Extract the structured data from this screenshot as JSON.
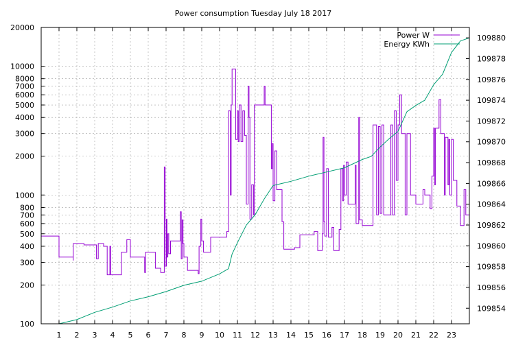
{
  "chart_data": {
    "type": "line",
    "title": "Power consumption Tuesday July 18 2017",
    "xlim": [
      0,
      24
    ],
    "x_ticks": [
      "1",
      "2",
      "3",
      "4",
      "5",
      "6",
      "7",
      "8",
      "9",
      "10",
      "11",
      "12",
      "13",
      "14",
      "15",
      "16",
      "17",
      "18",
      "19",
      "20",
      "21",
      "22",
      "23"
    ],
    "y_left": {
      "scale": "log",
      "range": [
        100,
        20000
      ],
      "ticks": [
        "100",
        "200",
        "300",
        "400",
        "500",
        "600",
        "700",
        "800",
        "1000",
        "2000",
        "3000",
        "4000",
        "5000",
        "6000",
        "7000",
        "8000",
        "10000",
        "20000"
      ]
    },
    "y_right": {
      "scale": "linear",
      "range": [
        109852.5,
        109881
      ],
      "ticks": [
        "109854",
        "109856",
        "109858",
        "109860",
        "109862",
        "109864",
        "109866",
        "109868",
        "109870",
        "109872",
        "109874",
        "109876",
        "109878",
        "109880"
      ]
    },
    "grid": true,
    "legend_position": "top-right",
    "series": [
      {
        "name": "Power W",
        "axis": "left",
        "color": "#9400d3",
        "points": [
          [
            0,
            480
          ],
          [
            1,
            480
          ],
          [
            1,
            330
          ],
          [
            1.8,
            330
          ],
          [
            1.8,
            310
          ],
          [
            1.8,
            420
          ],
          [
            2.4,
            420
          ],
          [
            2.4,
            410
          ],
          [
            3.1,
            410
          ],
          [
            3.1,
            320
          ],
          [
            3.2,
            320
          ],
          [
            3.2,
            420
          ],
          [
            3.5,
            420
          ],
          [
            3.5,
            400
          ],
          [
            3.7,
            400
          ],
          [
            3.7,
            240
          ],
          [
            3.85,
            240
          ],
          [
            3.85,
            400
          ],
          [
            3.9,
            400
          ],
          [
            3.9,
            240
          ],
          [
            4.5,
            240
          ],
          [
            4.5,
            360
          ],
          [
            4.8,
            360
          ],
          [
            4.8,
            450
          ],
          [
            5.0,
            450
          ],
          [
            5.0,
            330
          ],
          [
            5.8,
            330
          ],
          [
            5.8,
            250
          ],
          [
            5.85,
            250
          ],
          [
            5.85,
            360
          ],
          [
            6.4,
            360
          ],
          [
            6.4,
            270
          ],
          [
            6.7,
            270
          ],
          [
            6.7,
            250
          ],
          [
            6.9,
            250
          ],
          [
            6.9,
            1650
          ],
          [
            6.95,
            1650
          ],
          [
            6.95,
            280
          ],
          [
            7.02,
            280
          ],
          [
            7.02,
            650
          ],
          [
            7.05,
            650
          ],
          [
            7.05,
            330
          ],
          [
            7.1,
            330
          ],
          [
            7.1,
            500
          ],
          [
            7.15,
            500
          ],
          [
            7.15,
            350
          ],
          [
            7.25,
            350
          ],
          [
            7.25,
            440
          ],
          [
            7.8,
            440
          ],
          [
            7.8,
            740
          ],
          [
            7.85,
            740
          ],
          [
            7.85,
            320
          ],
          [
            7.9,
            320
          ],
          [
            7.9,
            640
          ],
          [
            7.95,
            640
          ],
          [
            7.95,
            420
          ],
          [
            8.0,
            420
          ],
          [
            8.0,
            330
          ],
          [
            8.2,
            330
          ],
          [
            8.2,
            260
          ],
          [
            8.8,
            260
          ],
          [
            8.8,
            245
          ],
          [
            8.85,
            245
          ],
          [
            8.85,
            400
          ],
          [
            8.95,
            400
          ],
          [
            8.95,
            650
          ],
          [
            9.0,
            650
          ],
          [
            9.0,
            440
          ],
          [
            9.1,
            440
          ],
          [
            9.1,
            360
          ],
          [
            9.5,
            360
          ],
          [
            9.5,
            470
          ],
          [
            10.4,
            470
          ],
          [
            10.4,
            520
          ],
          [
            10.5,
            520
          ],
          [
            10.5,
            4500
          ],
          [
            10.6,
            4500
          ],
          [
            10.6,
            1000
          ],
          [
            10.65,
            1000
          ],
          [
            10.65,
            5000
          ],
          [
            10.7,
            5000
          ],
          [
            10.7,
            9500
          ],
          [
            10.9,
            9500
          ],
          [
            10.9,
            2700
          ],
          [
            11.0,
            2700
          ],
          [
            11.0,
            4500
          ],
          [
            11.05,
            4500
          ],
          [
            11.05,
            2600
          ],
          [
            11.1,
            2600
          ],
          [
            11.1,
            5000
          ],
          [
            11.2,
            5000
          ],
          [
            11.2,
            2600
          ],
          [
            11.3,
            2600
          ],
          [
            11.3,
            4500
          ],
          [
            11.4,
            4500
          ],
          [
            11.4,
            2900
          ],
          [
            11.5,
            2900
          ],
          [
            11.5,
            850
          ],
          [
            11.6,
            850
          ],
          [
            11.6,
            7000
          ],
          [
            11.65,
            7000
          ],
          [
            11.65,
            4000
          ],
          [
            11.7,
            4000
          ],
          [
            11.7,
            650
          ],
          [
            11.8,
            650
          ],
          [
            11.8,
            1200
          ],
          [
            11.9,
            1200
          ],
          [
            11.9,
            700
          ],
          [
            11.95,
            700
          ],
          [
            11.95,
            5000
          ],
          [
            12.5,
            5000
          ],
          [
            12.5,
            7000
          ],
          [
            12.55,
            7000
          ],
          [
            12.55,
            5000
          ],
          [
            12.9,
            5000
          ],
          [
            12.9,
            1600
          ],
          [
            12.95,
            1600
          ],
          [
            12.95,
            2500
          ],
          [
            13.0,
            2500
          ],
          [
            13.0,
            900
          ],
          [
            13.1,
            900
          ],
          [
            13.1,
            2200
          ],
          [
            13.2,
            2200
          ],
          [
            13.2,
            1100
          ],
          [
            13.5,
            1100
          ],
          [
            13.5,
            620
          ],
          [
            13.6,
            620
          ],
          [
            13.6,
            380
          ],
          [
            14.2,
            380
          ],
          [
            14.2,
            390
          ],
          [
            14.5,
            390
          ],
          [
            14.5,
            490
          ],
          [
            15.3,
            490
          ],
          [
            15.3,
            520
          ],
          [
            15.5,
            520
          ],
          [
            15.5,
            370
          ],
          [
            15.75,
            370
          ],
          [
            15.75,
            500
          ],
          [
            15.8,
            500
          ],
          [
            15.8,
            2800
          ],
          [
            15.85,
            2800
          ],
          [
            15.85,
            620
          ],
          [
            15.9,
            620
          ],
          [
            15.9,
            480
          ],
          [
            16.0,
            480
          ],
          [
            16.0,
            1600
          ],
          [
            16.1,
            1600
          ],
          [
            16.1,
            470
          ],
          [
            16.3,
            470
          ],
          [
            16.3,
            560
          ],
          [
            16.4,
            560
          ],
          [
            16.4,
            370
          ],
          [
            16.7,
            370
          ],
          [
            16.7,
            540
          ],
          [
            16.8,
            540
          ],
          [
            16.8,
            1600
          ],
          [
            16.9,
            1600
          ],
          [
            16.9,
            900
          ],
          [
            16.95,
            900
          ],
          [
            16.95,
            1700
          ],
          [
            17.0,
            1700
          ],
          [
            17.0,
            1000
          ],
          [
            17.1,
            1000
          ],
          [
            17.1,
            1800
          ],
          [
            17.2,
            1800
          ],
          [
            17.2,
            850
          ],
          [
            17.6,
            850
          ],
          [
            17.6,
            1700
          ],
          [
            17.65,
            1700
          ],
          [
            17.65,
            600
          ],
          [
            17.8,
            600
          ],
          [
            17.8,
            4000
          ],
          [
            17.85,
            4000
          ],
          [
            17.85,
            640
          ],
          [
            18.0,
            640
          ],
          [
            18.0,
            580
          ],
          [
            18.6,
            580
          ],
          [
            18.6,
            3500
          ],
          [
            18.8,
            3500
          ],
          [
            18.8,
            700
          ],
          [
            18.9,
            700
          ],
          [
            18.9,
            3400
          ],
          [
            19.0,
            3400
          ],
          [
            19.0,
            720
          ],
          [
            19.1,
            720
          ],
          [
            19.1,
            3500
          ],
          [
            19.2,
            3500
          ],
          [
            19.2,
            700
          ],
          [
            19.6,
            700
          ],
          [
            19.6,
            3500
          ],
          [
            19.7,
            3500
          ],
          [
            19.7,
            700
          ],
          [
            19.8,
            700
          ],
          [
            19.8,
            4500
          ],
          [
            19.9,
            4500
          ],
          [
            19.9,
            1300
          ],
          [
            20.0,
            1300
          ],
          [
            20.0,
            3500
          ],
          [
            20.1,
            3500
          ],
          [
            20.1,
            6000
          ],
          [
            20.2,
            6000
          ],
          [
            20.2,
            3000
          ],
          [
            20.4,
            3000
          ],
          [
            20.4,
            700
          ],
          [
            20.5,
            700
          ],
          [
            20.5,
            3000
          ],
          [
            20.7,
            3000
          ],
          [
            20.7,
            1000
          ],
          [
            21.0,
            1000
          ],
          [
            21.0,
            850
          ],
          [
            21.4,
            850
          ],
          [
            21.4,
            1100
          ],
          [
            21.5,
            1100
          ],
          [
            21.5,
            1000
          ],
          [
            21.8,
            1000
          ],
          [
            21.8,
            780
          ],
          [
            21.9,
            780
          ],
          [
            21.9,
            1400
          ],
          [
            22.0,
            1400
          ],
          [
            22.0,
            3300
          ],
          [
            22.05,
            3300
          ],
          [
            22.05,
            1200
          ],
          [
            22.1,
            1200
          ],
          [
            22.1,
            3300
          ],
          [
            22.3,
            3300
          ],
          [
            22.3,
            5500
          ],
          [
            22.4,
            5500
          ],
          [
            22.4,
            3000
          ],
          [
            22.6,
            3000
          ],
          [
            22.6,
            1000
          ],
          [
            22.65,
            1000
          ],
          [
            22.65,
            2800
          ],
          [
            22.8,
            2800
          ],
          [
            22.8,
            1200
          ],
          [
            22.85,
            1200
          ],
          [
            22.85,
            2700
          ],
          [
            22.9,
            2700
          ],
          [
            22.9,
            1000
          ],
          [
            23.0,
            1000
          ],
          [
            23.0,
            2700
          ],
          [
            23.1,
            2700
          ],
          [
            23.1,
            1300
          ],
          [
            23.3,
            1300
          ],
          [
            23.3,
            820
          ],
          [
            23.5,
            820
          ],
          [
            23.5,
            580
          ],
          [
            23.7,
            580
          ],
          [
            23.7,
            1100
          ],
          [
            23.8,
            1100
          ],
          [
            23.8,
            700
          ],
          [
            24,
            700
          ]
        ]
      },
      {
        "name": "Energy KWh",
        "axis": "right",
        "color": "#009e73",
        "points": [
          [
            1,
            109852.5
          ],
          [
            2,
            109852.9
          ],
          [
            3,
            109853.6
          ],
          [
            4,
            109854.1
          ],
          [
            5,
            109854.7
          ],
          [
            6,
            109855.1
          ],
          [
            7,
            109855.6
          ],
          [
            8,
            109856.2
          ],
          [
            9,
            109856.6
          ],
          [
            10,
            109857.3
          ],
          [
            10.5,
            109857.8
          ],
          [
            10.7,
            109859.2
          ],
          [
            11,
            109860.3
          ],
          [
            11.5,
            109862.0
          ],
          [
            12,
            109863.0
          ],
          [
            12.5,
            109864.5
          ],
          [
            13,
            109865.8
          ],
          [
            13.5,
            109866.0
          ],
          [
            14,
            109866.2
          ],
          [
            15,
            109866.7
          ],
          [
            16,
            109867.1
          ],
          [
            17,
            109867.5
          ],
          [
            18,
            109868.3
          ],
          [
            18.5,
            109868.6
          ],
          [
            19,
            109869.5
          ],
          [
            19.5,
            109870.3
          ],
          [
            20,
            109871.0
          ],
          [
            20.5,
            109872.9
          ],
          [
            21,
            109873.5
          ],
          [
            21.5,
            109874.0
          ],
          [
            22,
            109875.5
          ],
          [
            22.5,
            109876.5
          ],
          [
            23,
            109878.6
          ],
          [
            23.5,
            109879.7
          ],
          [
            24,
            109880.0
          ]
        ]
      }
    ]
  }
}
